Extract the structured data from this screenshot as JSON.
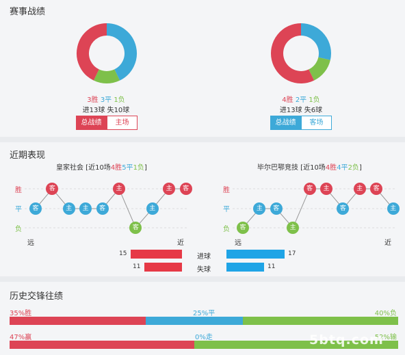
{
  "colors": {
    "win": "#dd4455",
    "draw": "#3da9d8",
    "loss": "#7ec04a",
    "bar_red": "#e63946",
    "bar_blue": "#1fa4e6"
  },
  "sections": {
    "record_title": "赛事战绩",
    "recent_title": "近期表现",
    "h2h_title": "历史交锋往绩"
  },
  "home_record": {
    "win": "3胜",
    "draw": "3平",
    "loss": "1负",
    "goals": "进13球 失10球",
    "btn_total": "总战绩",
    "btn_venue": "主场",
    "donut": {
      "win": 3,
      "draw": 3,
      "loss": 1
    }
  },
  "away_record": {
    "win": "4胜",
    "draw": "2平",
    "loss": "1负",
    "goals": "进13球 失6球",
    "btn_total": "总战绩",
    "btn_venue": "客场",
    "donut": {
      "win": 4,
      "draw": 2,
      "loss": 1
    }
  },
  "recent": {
    "home": {
      "header_prefix": "皇家社会 [近10场",
      "w": "4胜",
      "d": "5平",
      "l": "1负",
      "header_suffix": "]",
      "matches": [
        {
          "r": "D",
          "t": "客"
        },
        {
          "r": "W",
          "t": "客"
        },
        {
          "r": "D",
          "t": "主"
        },
        {
          "r": "D",
          "t": "主"
        },
        {
          "r": "D",
          "t": "客"
        },
        {
          "r": "W",
          "t": "主"
        },
        {
          "r": "L",
          "t": "客"
        },
        {
          "r": "D",
          "t": "主"
        },
        {
          "r": "W",
          "t": "主"
        },
        {
          "r": "W",
          "t": "客"
        }
      ]
    },
    "away": {
      "header_prefix": "毕尔巴鄂竞技 [近10场",
      "w": "4胜",
      "d": "4平",
      "l": "2负",
      "header_suffix": "]",
      "matches": [
        {
          "r": "L",
          "t": "客"
        },
        {
          "r": "D",
          "t": "主"
        },
        {
          "r": "D",
          "t": "客"
        },
        {
          "r": "L",
          "t": "主"
        },
        {
          "r": "W",
          "t": "客"
        },
        {
          "r": "W",
          "t": "主"
        },
        {
          "r": "D",
          "t": "客"
        },
        {
          "r": "W",
          "t": "主"
        },
        {
          "r": "W",
          "t": "客"
        },
        {
          "r": "D",
          "t": "主"
        }
      ]
    },
    "axis": {
      "win": "胜",
      "draw": "平",
      "loss": "负",
      "far": "远",
      "near": "近"
    },
    "goals_for_label": "进球",
    "goals_against_label": "失球",
    "home_goals_for": 15,
    "home_goals_against": 11,
    "away_goals_for": 17,
    "away_goals_against": 11
  },
  "h2h": {
    "row1": {
      "left": "35%胜",
      "mid": "25%平",
      "right": "40%负",
      "w": 35,
      "d": 25,
      "l": 40
    },
    "row2": {
      "left": "47%赢",
      "mid": "0%走",
      "right": "52%输",
      "w": 47,
      "d": 0,
      "l": 52
    }
  },
  "watermark": "5btq.com"
}
